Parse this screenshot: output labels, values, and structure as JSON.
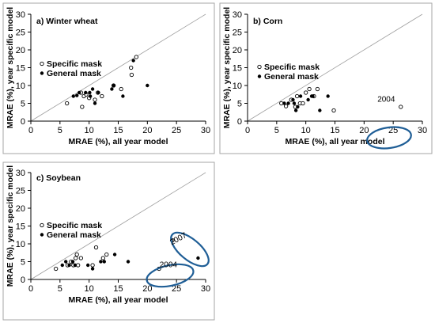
{
  "chart_data": [
    {
      "type": "scatter",
      "panel_label": "a) Winter wheat",
      "xlabel": "MRAE (%), all year model",
      "ylabel": "MRAE (%), year specific model",
      "xlim": [
        0,
        30
      ],
      "ylim": [
        0,
        30
      ],
      "xticks": [
        "0",
        "5",
        "10",
        "15",
        "20",
        "25",
        "30"
      ],
      "yticks": [
        "0",
        "5",
        "10",
        "15",
        "20",
        "25",
        "30"
      ],
      "legend": {
        "position": "center-left",
        "entries": [
          "Specific mask",
          "General mask"
        ]
      },
      "reference_line": "1:1",
      "series": [
        {
          "name": "Specific mask",
          "marker": "open-circle",
          "points": [
            [
              6.2,
              5.0
            ],
            [
              8.6,
              8.0
            ],
            [
              9.1,
              7.0
            ],
            [
              9.5,
              7.5
            ],
            [
              10.0,
              6.5
            ],
            [
              11.0,
              6.0
            ],
            [
              11.5,
              8.0
            ],
            [
              12.2,
              7.0
            ],
            [
              14.2,
              10.0
            ],
            [
              15.5,
              9.0
            ],
            [
              17.3,
              13.0
            ],
            [
              17.2,
              15.0
            ],
            [
              18.1,
              18.0
            ],
            [
              8.8,
              4.0
            ]
          ]
        },
        {
          "name": "General mask",
          "marker": "filled-circle",
          "points": [
            [
              7.3,
              7.0
            ],
            [
              7.9,
              7.2
            ],
            [
              8.3,
              8.0
            ],
            [
              9.4,
              8.0
            ],
            [
              10.1,
              8.0
            ],
            [
              10.6,
              9.0
            ],
            [
              11.0,
              5.0
            ],
            [
              11.6,
              8.0
            ],
            [
              13.9,
              9.0
            ],
            [
              14.2,
              10.0
            ],
            [
              15.8,
              7.0
            ],
            [
              17.6,
              17.0
            ],
            [
              20.0,
              10.0
            ],
            [
              10.2,
              7.0
            ]
          ]
        }
      ]
    },
    {
      "type": "scatter",
      "panel_label": "b) Corn",
      "xlabel": "MRAE (%), all year model",
      "ylabel": "MRAE (%), year specific model",
      "xlim": [
        0,
        30
      ],
      "ylim": [
        0,
        30
      ],
      "xticks": [
        "0",
        "5",
        "10",
        "15",
        "20",
        "25",
        "30"
      ],
      "yticks": [
        "0",
        "5",
        "10",
        "15",
        "20",
        "25",
        "30"
      ],
      "legend": {
        "position": "center-left",
        "entries": [
          "Specific mask",
          "General mask"
        ]
      },
      "reference_line": "1:1",
      "annotations": [
        {
          "text": "2004",
          "x": 23.8,
          "y": 5.5
        }
      ],
      "series": [
        {
          "name": "Specific mask",
          "marker": "open-circle",
          "points": [
            [
              5.8,
              5.0
            ],
            [
              6.6,
              4.2
            ],
            [
              7.5,
              6.0
            ],
            [
              8.5,
              7.0
            ],
            [
              9.0,
              5.0
            ],
            [
              9.5,
              5.0
            ],
            [
              10.0,
              8.0
            ],
            [
              10.6,
              9.0
            ],
            [
              11.4,
              7.0
            ],
            [
              12.0,
              9.0
            ],
            [
              14.8,
              3.0
            ],
            [
              26.3,
              4.0
            ],
            [
              8.2,
              4.0
            ]
          ]
        },
        {
          "name": "General mask",
          "marker": "filled-circle",
          "points": [
            [
              6.3,
              5.0
            ],
            [
              7.0,
              5.0
            ],
            [
              7.8,
              6.0
            ],
            [
              8.3,
              3.0
            ],
            [
              8.6,
              4.0
            ],
            [
              9.1,
              7.0
            ],
            [
              10.4,
              6.0
            ],
            [
              11.0,
              7.0
            ],
            [
              11.2,
              7.0
            ],
            [
              12.4,
              3.0
            ],
            [
              13.8,
              7.0
            ],
            [
              8.0,
              5.0
            ]
          ]
        }
      ]
    },
    {
      "type": "scatter",
      "panel_label": "c) Soybean",
      "xlabel": "MRAE (%), all year model",
      "ylabel": "MRAE (%), year specific model",
      "xlim": [
        0,
        30
      ],
      "ylim": [
        0,
        30
      ],
      "xticks": [
        "0",
        "5",
        "10",
        "15",
        "20",
        "25",
        "30"
      ],
      "yticks": [
        "0",
        "5",
        "10",
        "15",
        "20",
        "25",
        "30"
      ],
      "legend": {
        "position": "center-left",
        "entries": [
          "Specific mask",
          "General mask"
        ]
      },
      "reference_line": "1:1",
      "annotations": [
        {
          "text": "2007",
          "x": 25.5,
          "y": 10.8,
          "angle": -28
        },
        {
          "text": "2004",
          "x": 23.6,
          "y": 3.5
        }
      ],
      "series": [
        {
          "name": "Specific mask",
          "marker": "open-circle",
          "points": [
            [
              4.3,
              3.0
            ],
            [
              6.3,
              4.0
            ],
            [
              6.9,
              5.0
            ],
            [
              7.3,
              4.0
            ],
            [
              7.7,
              6.0
            ],
            [
              7.9,
              7.0
            ],
            [
              8.1,
              4.0
            ],
            [
              8.6,
              6.0
            ],
            [
              10.6,
              4.0
            ],
            [
              11.2,
              9.0
            ],
            [
              12.4,
              6.0
            ],
            [
              13.0,
              7.0
            ],
            [
              22.0,
              3.0
            ],
            [
              24.3,
              11.0
            ]
          ]
        },
        {
          "name": "General mask",
          "marker": "filled-circle",
          "points": [
            [
              5.4,
              4.0
            ],
            [
              6.0,
              5.0
            ],
            [
              6.6,
              4.0
            ],
            [
              7.2,
              5.0
            ],
            [
              7.6,
              4.0
            ],
            [
              9.8,
              4.0
            ],
            [
              10.6,
              3.0
            ],
            [
              12.0,
              5.0
            ],
            [
              12.6,
              5.0
            ],
            [
              14.4,
              7.0
            ],
            [
              16.7,
              5.0
            ],
            [
              28.7,
              6.0
            ]
          ]
        }
      ]
    }
  ]
}
